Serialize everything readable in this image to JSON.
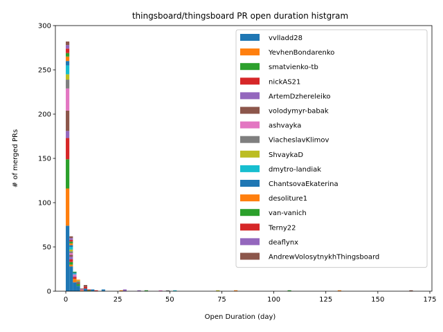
{
  "chart_data": {
    "type": "bar",
    "subtype": "stacked-histogram",
    "title": "thingsboard/thingsboard PR open duration histgram",
    "xlabel": "Open Duration (day)",
    "ylabel": "# of merged PRs",
    "xlim": [
      -5,
      176
    ],
    "ylim": [
      0,
      300
    ],
    "xticks": [
      0,
      25,
      50,
      75,
      100,
      125,
      150,
      175
    ],
    "yticks": [
      0,
      50,
      100,
      150,
      200,
      250,
      300
    ],
    "bin_width": 1.72,
    "grid": false,
    "legend_position": "top-right",
    "series": [
      {
        "name": "vvlladd28",
        "color": "#1f77b4",
        "bins": [
          0,
          1,
          2,
          3,
          5,
          7,
          10
        ],
        "values": [
          74,
          28,
          10,
          6,
          3,
          2,
          1
        ]
      },
      {
        "name": "YevhenBondarenko",
        "color": "#ff7f0e",
        "bins": [
          0,
          1,
          2,
          4,
          15,
          47
        ],
        "values": [
          42,
          2,
          4,
          1,
          1,
          1
        ]
      },
      {
        "name": "smatvienko-tb",
        "color": "#2ca02c",
        "bins": [
          0,
          1,
          3,
          6,
          62,
          115,
          170
        ],
        "values": [
          33,
          3,
          2,
          1,
          1,
          1,
          1
        ]
      },
      {
        "name": "nickAS21",
        "color": "#d62728",
        "bins": [
          0,
          1,
          2,
          5,
          8
        ],
        "values": [
          24,
          3,
          2,
          2,
          1
        ]
      },
      {
        "name": "ArtemDzhereleiko",
        "color": "#9467bd",
        "bins": [
          0,
          1,
          2,
          16
        ],
        "values": [
          8,
          3,
          1,
          2
        ]
      },
      {
        "name": "volodymyr-babak",
        "color": "#8c564b",
        "bins": [
          0,
          1,
          3,
          5
        ],
        "values": [
          23,
          2,
          2,
          2
        ]
      },
      {
        "name": "ashvayka",
        "color": "#e377c2",
        "bins": [
          0,
          1,
          2,
          4,
          26
        ],
        "values": [
          25,
          2,
          2,
          1,
          1
        ]
      },
      {
        "name": "ViacheslavKlimov",
        "color": "#7f7f7f",
        "bins": [
          0,
          1,
          3,
          28
        ],
        "values": [
          10,
          2,
          1,
          1
        ]
      },
      {
        "name": "ShvaykaD",
        "color": "#bcbd22",
        "bins": [
          0,
          1,
          3,
          42
        ],
        "values": [
          6,
          2,
          1,
          1
        ]
      },
      {
        "name": "dmytro-landiak",
        "color": "#17becf",
        "bins": [
          0,
          1,
          2,
          30
        ],
        "values": [
          10,
          3,
          1,
          1
        ]
      },
      {
        "name": "ChantsovaEkaterina",
        "color": "#1f77b4",
        "bins": [
          0,
          1,
          2,
          10
        ],
        "values": [
          5,
          2,
          1,
          1
        ]
      },
      {
        "name": "desoliture1",
        "color": "#ff7f0e",
        "bins": [
          0,
          1,
          3,
          76
        ],
        "values": [
          5,
          2,
          1,
          1
        ]
      },
      {
        "name": "van-vanich",
        "color": "#2ca02c",
        "bins": [
          0,
          1,
          2,
          22
        ],
        "values": [
          4,
          2,
          1,
          1
        ]
      },
      {
        "name": "Terny22",
        "color": "#d62728",
        "bins": [
          0,
          1,
          6
        ],
        "values": [
          5,
          2,
          1
        ]
      },
      {
        "name": "deaflynx",
        "color": "#9467bd",
        "bins": [
          0,
          1,
          20
        ],
        "values": [
          4,
          2,
          1
        ]
      },
      {
        "name": "AndrewVolosytnykhThingsboard",
        "color": "#8c564b",
        "bins": [
          0,
          1,
          4,
          96
        ],
        "values": [
          4,
          2,
          1,
          1
        ]
      }
    ]
  }
}
